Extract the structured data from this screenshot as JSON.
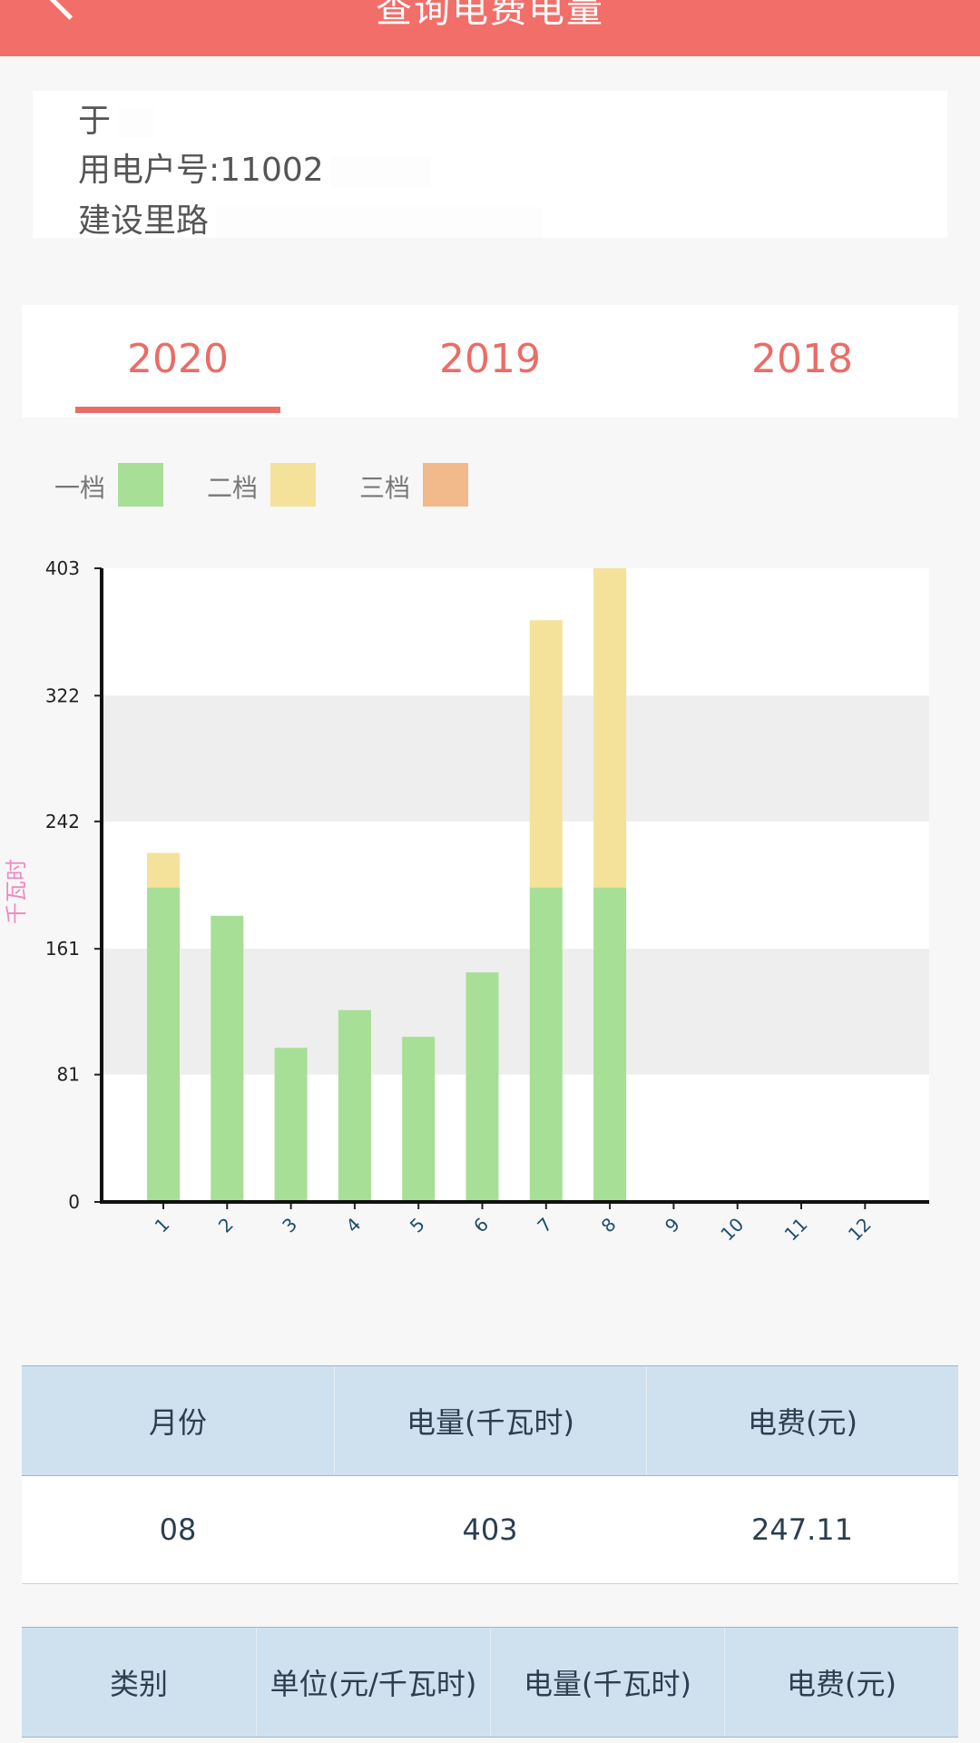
{
  "header": {
    "title": "查询电费电量"
  },
  "account": {
    "name": "于",
    "account_label": "用电户号:",
    "account_no": "11002",
    "address": "建设里路"
  },
  "tabs": [
    {
      "label": "2020",
      "selected": true
    },
    {
      "label": "2019",
      "selected": false
    },
    {
      "label": "2018",
      "selected": false
    }
  ],
  "legend": [
    {
      "label": "一档",
      "color": "#a6df95"
    },
    {
      "label": "二档",
      "color": "#f4e29b"
    },
    {
      "label": "三档",
      "color": "#f2b98a"
    }
  ],
  "chart_data": {
    "type": "bar",
    "stacked": true,
    "ylabel": "千瓦时",
    "ylim": [
      0,
      403
    ],
    "yticks": [
      0,
      81,
      161,
      242,
      322,
      403
    ],
    "categories": [
      "1",
      "2",
      "3",
      "4",
      "5",
      "6",
      "7",
      "8",
      "9",
      "10",
      "11",
      "12"
    ],
    "series": [
      {
        "name": "一档",
        "color": "#a6df95",
        "values": [
          200,
          182,
          98,
          122,
          105,
          146,
          200,
          200,
          0,
          0,
          0,
          0
        ]
      },
      {
        "name": "二档",
        "color": "#f4e29b",
        "values": [
          22,
          0,
          0,
          0,
          0,
          0,
          170,
          203,
          0,
          0,
          0,
          0
        ]
      },
      {
        "name": "三档",
        "color": "#f2b98a",
        "values": [
          0,
          0,
          0,
          0,
          0,
          0,
          0,
          0,
          0,
          0,
          0,
          0
        ]
      }
    ],
    "grid_bands": true
  },
  "monthly_table": {
    "headers": [
      "月份",
      "电量(千瓦时)",
      "电费(元)"
    ],
    "rows": [
      [
        "08",
        "403",
        "247.11"
      ]
    ]
  },
  "detail_table": {
    "headers": [
      "类别",
      "单位(元/千瓦时)",
      "电量(千瓦时)",
      "电费(元)"
    ]
  }
}
